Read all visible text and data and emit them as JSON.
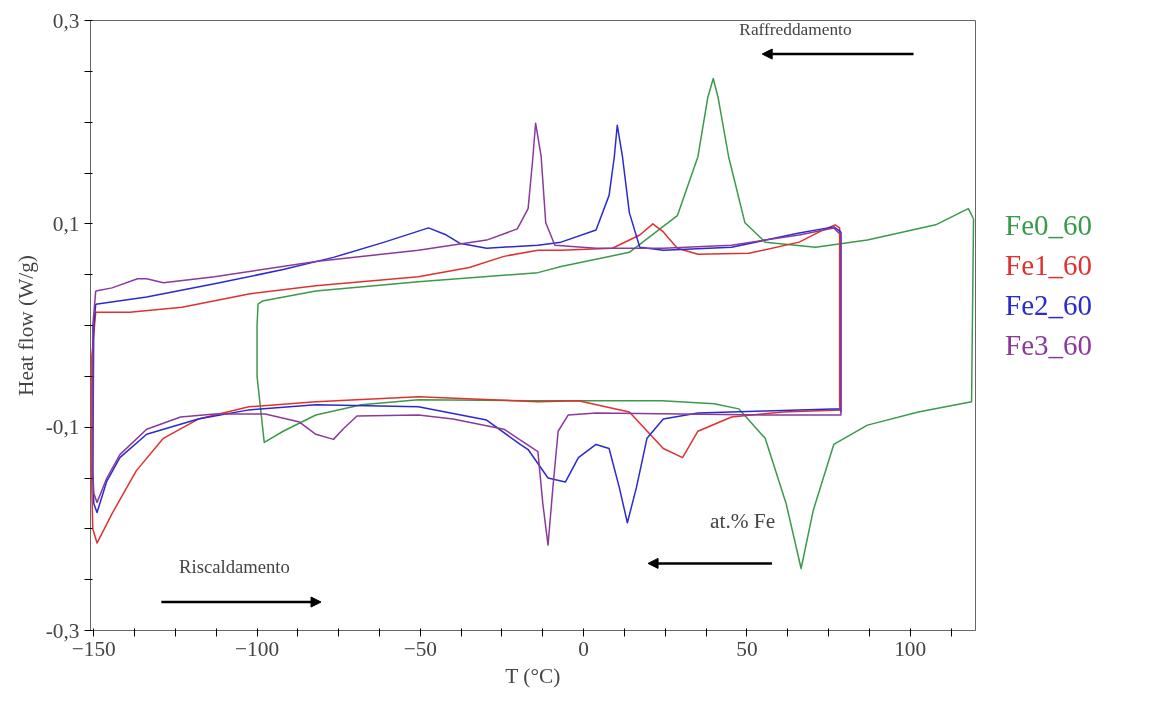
{
  "chart_data": {
    "type": "line",
    "xlabel": "T (°C)",
    "ylabel": "Heat flow (W/g)",
    "xlim": [
      -151,
      120
    ],
    "ylim": [
      -0.3,
      0.3
    ],
    "xticks": [
      -150,
      {
        "value": -137.5,
        "label": null
      },
      {
        "value": -125,
        "label": null
      },
      {
        "value": -112.5,
        "label": null
      },
      -100,
      {
        "value": -87.5,
        "label": null
      },
      {
        "value": -75,
        "label": null
      },
      {
        "value": -62.5,
        "label": null
      },
      -50,
      {
        "value": -37.5,
        "label": null
      },
      {
        "value": -25,
        "label": null
      },
      {
        "value": -12.5,
        "label": null
      },
      0,
      {
        "value": 12.5,
        "label": null
      },
      {
        "value": 25,
        "label": null
      },
      {
        "value": 37.5,
        "label": null
      },
      50,
      {
        "value": 62.5,
        "label": null
      },
      {
        "value": 75,
        "label": null
      },
      {
        "value": 87.5,
        "label": null
      },
      100,
      {
        "value": 112.5,
        "label": null
      }
    ],
    "yticks": [
      {
        "value": -0.3,
        "label": "-0,3"
      },
      {
        "value": -0.25,
        "label": null
      },
      {
        "value": -0.2,
        "label": null
      },
      {
        "value": -0.15,
        "label": null
      },
      {
        "value": -0.1,
        "label": "-0,1"
      },
      {
        "value": -0.05,
        "label": null
      },
      {
        "value": 0,
        "label": null
      },
      {
        "value": 0.05,
        "label": null
      },
      {
        "value": 0.1,
        "label": "0,1"
      },
      {
        "value": 0.15,
        "label": null
      },
      {
        "value": 0.2,
        "label": null
      },
      {
        "value": 0.25,
        "label": null
      },
      {
        "value": 0.3,
        "label": "0,3"
      }
    ],
    "grid": false,
    "line_style": "solid",
    "marker": "none",
    "annotations": [
      "Raffreddamento",
      "Riscaldamento",
      "at.% Fe"
    ],
    "series": [
      {
        "name": "Fe0_60",
        "color": "#3a9a4a",
        "x": [
          -99.7,
          -98.4,
          -82,
          -50.6,
          -14,
          -6.9,
          14,
          28.7,
          35,
          38,
          39.7,
          41.2,
          44.4,
          49.4,
          55.6,
          71,
          86.9,
          107.8,
          117.8,
          119.4,
          118.8,
          102.5,
          86.9,
          76.6,
          70.3,
          66.6,
          62,
          55.6,
          47.5,
          40,
          24,
          -17,
          -50.6,
          -68,
          -82,
          -92,
          -97.8,
          -100,
          -100,
          -99.7
        ],
        "values": [
          0.021,
          0.024,
          0.034,
          0.043,
          0.052,
          0.058,
          0.072,
          0.108,
          0.166,
          0.224,
          0.243,
          0.224,
          0.166,
          0.101,
          0.082,
          0.077,
          0.084,
          0.099,
          0.115,
          0.105,
          -0.075,
          -0.085,
          -0.098,
          -0.117,
          -0.182,
          -0.239,
          -0.175,
          -0.111,
          -0.082,
          -0.077,
          -0.074,
          -0.074,
          -0.073,
          -0.078,
          -0.088,
          -0.104,
          -0.115,
          -0.05,
          0.0,
          0.021
        ]
      },
      {
        "name": "Fe1_60",
        "color": "#e03030",
        "x": [
          -149.4,
          -139,
          -123,
          -102.5,
          -82,
          -50.6,
          -35,
          -24.4,
          -14,
          -6.9,
          8.8,
          17.2,
          21.2,
          24.4,
          28.7,
          35,
          50.6,
          66,
          73.4,
          77,
          78.4,
          78.4,
          78.8,
          61,
          45.3,
          35,
          30.3,
          24.4,
          14,
          -1.6,
          -14,
          -50.6,
          -82,
          -102.5,
          -118,
          -128.7,
          -137,
          -144.4,
          -149,
          -150.3,
          -150.6,
          -150.6,
          -149.4
        ],
        "values": [
          0.013,
          0.013,
          0.018,
          0.031,
          0.039,
          0.048,
          0.057,
          0.068,
          0.074,
          0.074,
          0.076,
          0.089,
          0.1,
          0.092,
          0.076,
          0.07,
          0.071,
          0.082,
          0.094,
          0.099,
          0.096,
          -0.08,
          -0.083,
          -0.085,
          -0.09,
          -0.104,
          -0.13,
          -0.121,
          -0.085,
          -0.074,
          -0.075,
          -0.07,
          -0.075,
          -0.08,
          -0.092,
          -0.111,
          -0.143,
          -0.185,
          -0.214,
          -0.2,
          -0.16,
          -0.03,
          0.013
        ]
      },
      {
        "name": "Fe2_60",
        "color": "#2a2ad0",
        "x": [
          -149.4,
          -133.8,
          -113,
          -92,
          -76.6,
          -61,
          -47.5,
          -42,
          -38,
          -29.7,
          -14,
          -6.9,
          3.8,
          7.8,
          9.4,
          10.3,
          11.9,
          14,
          17.2,
          24.4,
          45.3,
          66,
          76.6,
          78.8,
          78.8,
          78.8,
          55.6,
          35,
          24.4,
          19.4,
          16.2,
          13.4,
          10.9,
          7.8,
          3.8,
          -1.6,
          -5.6,
          -10.9,
          -17,
          -19.4,
          -29.7,
          -50.6,
          -82,
          -102.5,
          -118,
          -133.8,
          -142,
          -146,
          -149,
          -150,
          -150.3,
          -150,
          -149.4
        ],
        "values": [
          0.021,
          0.028,
          0.041,
          0.055,
          0.067,
          0.082,
          0.096,
          0.089,
          0.081,
          0.076,
          0.079,
          0.082,
          0.094,
          0.128,
          0.166,
          0.197,
          0.166,
          0.111,
          0.077,
          0.074,
          0.077,
          0.091,
          0.097,
          0.092,
          -0.085,
          -0.082,
          -0.084,
          -0.086,
          -0.092,
          -0.111,
          -0.159,
          -0.194,
          -0.159,
          -0.121,
          -0.117,
          -0.13,
          -0.154,
          -0.15,
          -0.122,
          -0.117,
          -0.093,
          -0.08,
          -0.078,
          -0.083,
          -0.092,
          -0.107,
          -0.13,
          -0.153,
          -0.184,
          -0.175,
          -0.143,
          0.0,
          0.021
        ]
      },
      {
        "name": "Fe3_60",
        "color": "#8b3a9b",
        "x": [
          -149.4,
          -144.4,
          -136.6,
          -133.8,
          -128.7,
          -113,
          -82,
          -50.6,
          -29.7,
          -20.3,
          -17,
          -15.6,
          -14.7,
          -13,
          -11.6,
          -8.8,
          3.8,
          24.4,
          45.3,
          66,
          76.6,
          78.8,
          78.8,
          55.6,
          29.7,
          3.8,
          -4.7,
          -7.8,
          -9.4,
          -10.9,
          -12.5,
          -14,
          -24.4,
          -40,
          -50.6,
          -69.4,
          -73.4,
          -76.6,
          -82,
          -87,
          -97.5,
          -113,
          -123.4,
          -133.8,
          -142,
          -146,
          -149,
          -150,
          -150.3,
          -150.3,
          -149.4
        ],
        "values": [
          0.034,
          0.037,
          0.046,
          0.046,
          0.042,
          0.048,
          0.063,
          0.074,
          0.084,
          0.095,
          0.115,
          0.163,
          0.199,
          0.166,
          0.101,
          0.079,
          0.076,
          0.076,
          0.079,
          0.089,
          0.096,
          0.089,
          -0.088,
          -0.088,
          -0.087,
          -0.086,
          -0.088,
          -0.104,
          -0.159,
          -0.216,
          -0.175,
          -0.124,
          -0.102,
          -0.092,
          -0.088,
          -0.089,
          -0.101,
          -0.112,
          -0.107,
          -0.095,
          -0.087,
          -0.087,
          -0.09,
          -0.102,
          -0.127,
          -0.15,
          -0.174,
          -0.165,
          -0.143,
          0.0,
          0.034
        ]
      }
    ]
  }
}
